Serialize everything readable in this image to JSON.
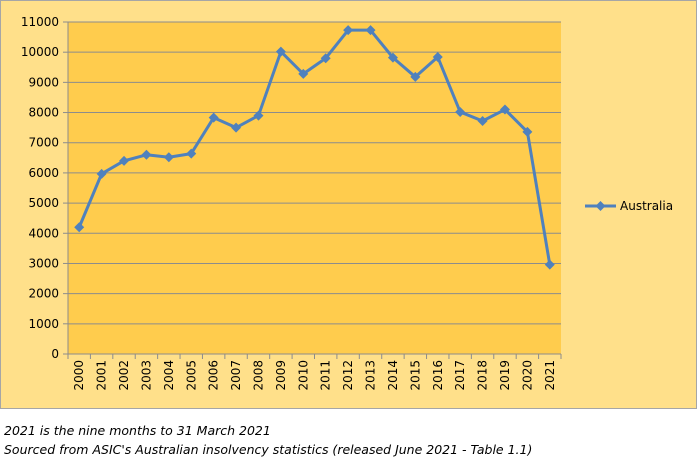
{
  "chart_data": {
    "type": "line",
    "categories": [
      "2000",
      "2001",
      "2002",
      "2003",
      "2004",
      "2005",
      "2006",
      "2007",
      "2008",
      "2009",
      "2010",
      "2011",
      "2012",
      "2013",
      "2014",
      "2015",
      "2016",
      "2017",
      "2018",
      "2019",
      "2020",
      "2021"
    ],
    "series": [
      {
        "name": "Australia",
        "values": [
          4200,
          5970,
          6400,
          6600,
          6520,
          6640,
          7830,
          7500,
          7900,
          10020,
          9280,
          9800,
          10730,
          10730,
          9820,
          9180,
          9840,
          8020,
          7720,
          8100,
          7360,
          2960
        ]
      }
    ],
    "yticks": [
      "0",
      "1000",
      "2000",
      "3000",
      "4000",
      "5000",
      "6000",
      "7000",
      "8000",
      "9000",
      "10000",
      "11000"
    ],
    "ylim": [
      0,
      11000
    ],
    "title": "",
    "xlabel": "",
    "ylabel": "",
    "grid": true,
    "legend_position": "right",
    "colors": {
      "plot_background": "#FFCC4D",
      "chart_background": "#FFE08A",
      "line": "#4F81BD",
      "grid": "#8C8C8C"
    }
  },
  "notes": {
    "line1": "2021 is the nine months to 31 March 2021",
    "line2": "Sourced from ASIC's Australian insolvency statistics (released June 2021 - Table 1.1)"
  }
}
